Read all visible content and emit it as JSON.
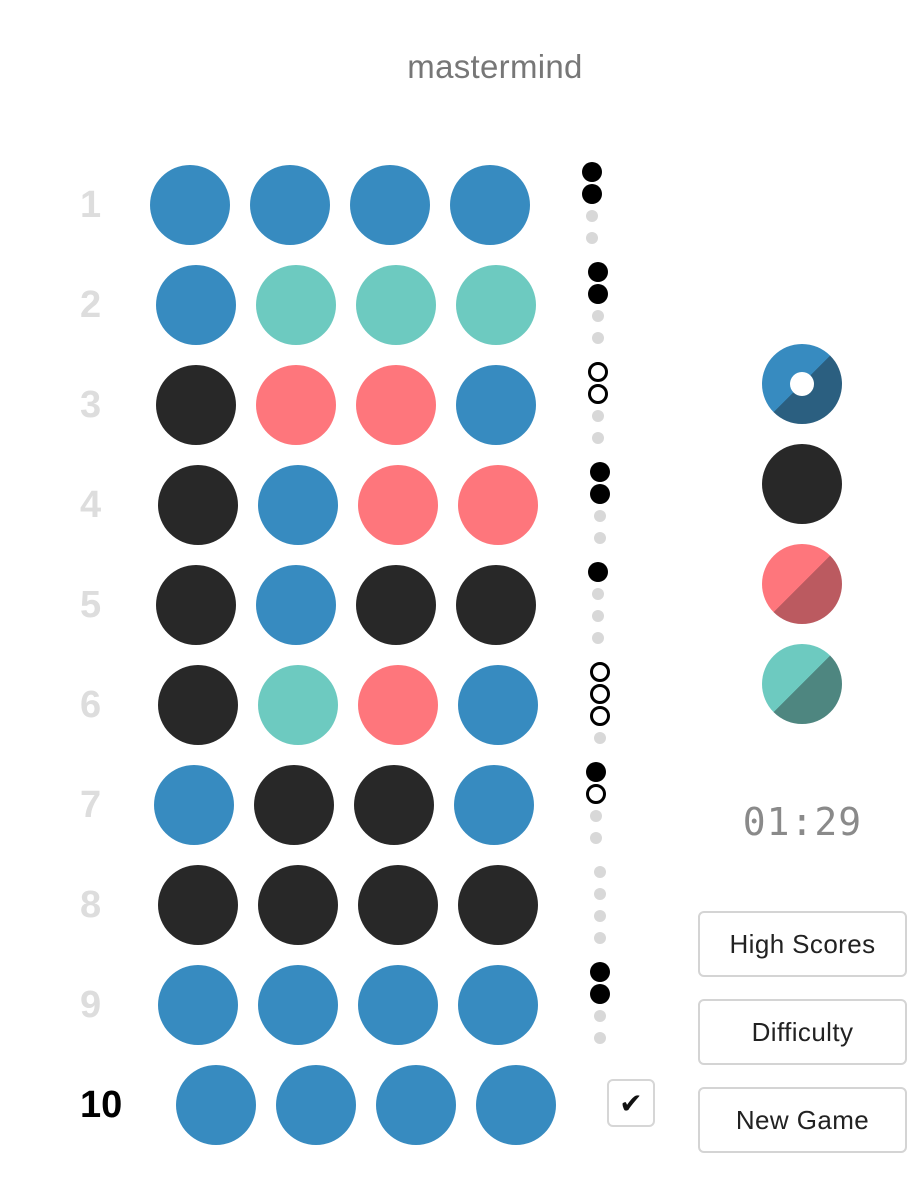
{
  "title": "mastermind",
  "colors": {
    "blue": "#378bc0",
    "teal": "#6dcac0",
    "red": "#fe767c",
    "black": "#282828"
  },
  "rows": [
    {
      "number": "1",
      "pegs": [
        "blue",
        "blue",
        "blue",
        "blue"
      ],
      "feedback": [
        "black",
        "black",
        "empty",
        "empty"
      ]
    },
    {
      "number": "2",
      "pegs": [
        "blue",
        "teal",
        "teal",
        "teal"
      ],
      "feedback": [
        "black",
        "black",
        "empty",
        "empty"
      ]
    },
    {
      "number": "3",
      "pegs": [
        "black",
        "red",
        "red",
        "blue"
      ],
      "feedback": [
        "white",
        "white",
        "empty",
        "empty"
      ]
    },
    {
      "number": "4",
      "pegs": [
        "black",
        "blue",
        "red",
        "red"
      ],
      "feedback": [
        "black",
        "black",
        "empty",
        "empty"
      ]
    },
    {
      "number": "5",
      "pegs": [
        "black",
        "blue",
        "black",
        "black"
      ],
      "feedback": [
        "black",
        "empty",
        "empty",
        "empty"
      ]
    },
    {
      "number": "6",
      "pegs": [
        "black",
        "teal",
        "red",
        "blue"
      ],
      "feedback": [
        "white",
        "white",
        "white",
        "empty"
      ]
    },
    {
      "number": "7",
      "pegs": [
        "blue",
        "black",
        "black",
        "blue"
      ],
      "feedback": [
        "black",
        "white",
        "empty",
        "empty"
      ]
    },
    {
      "number": "8",
      "pegs": [
        "black",
        "black",
        "black",
        "black"
      ],
      "feedback": [
        "empty",
        "empty",
        "empty",
        "empty"
      ]
    },
    {
      "number": "9",
      "pegs": [
        "blue",
        "blue",
        "blue",
        "blue"
      ],
      "feedback": [
        "black",
        "black",
        "empty",
        "empty"
      ]
    },
    {
      "number": "10",
      "pegs": [
        "blue",
        "blue",
        "blue",
        "blue"
      ],
      "current": true
    }
  ],
  "submit_label": "✔",
  "palette": [
    {
      "color": "blue",
      "selected": true
    },
    {
      "color": "black",
      "selected": false
    },
    {
      "color": "red",
      "selected": false
    },
    {
      "color": "teal",
      "selected": false
    }
  ],
  "timer": "01:29",
  "buttons": {
    "high_scores": "High Scores",
    "difficulty": "Difficulty",
    "new_game": "New Game"
  }
}
